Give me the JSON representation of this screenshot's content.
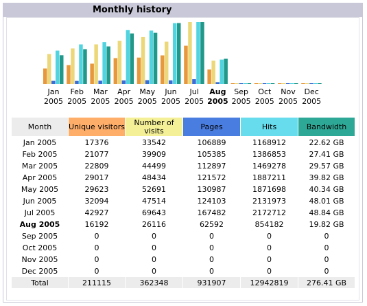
{
  "title": "Monthly history",
  "chart": {
    "months": [
      [
        "Jan",
        "2005"
      ],
      [
        "Feb",
        "2005"
      ],
      [
        "Mar",
        "2005"
      ],
      [
        "Apr",
        "2005"
      ],
      [
        "May",
        "2005"
      ],
      [
        "Jun",
        "2005"
      ],
      [
        "Jul",
        "2005"
      ],
      [
        "Aug",
        "2005"
      ],
      [
        "Sep",
        "2005"
      ],
      [
        "Oct",
        "2005"
      ],
      [
        "Nov",
        "2005"
      ],
      [
        "Dec",
        "2005"
      ]
    ],
    "series_colors": [
      "#e8983c",
      "#ecd878",
      "#3c6cd8",
      "#50d4e0",
      "#20988a"
    ]
  },
  "table": {
    "headers": [
      "Month",
      "Unique visitors",
      "Number of visits",
      "Pages",
      "Hits",
      "Bandwidth"
    ],
    "header_colors": [
      "#ececec",
      "#ffae6a",
      "#f4f098",
      "#4a7de0",
      "#66dcec",
      "#2ea896"
    ],
    "current_row": 7,
    "rows": [
      [
        "Jan 2005",
        17376,
        33542,
        106889,
        1168912,
        {
          "value": 22.62,
          "label": "22.62 GB"
        }
      ],
      [
        "Feb 2005",
        21077,
        39909,
        105385,
        1386853,
        {
          "value": 27.41,
          "label": "27.41 GB"
        }
      ],
      [
        "Mar 2005",
        22809,
        44499,
        112897,
        1469278,
        {
          "value": 29.57,
          "label": "29.57 GB"
        }
      ],
      [
        "Apr 2005",
        29017,
        48434,
        121572,
        1887211,
        {
          "value": 39.82,
          "label": "39.82 GB"
        }
      ],
      [
        "May 2005",
        29623,
        52691,
        130987,
        1871698,
        {
          "value": 40.34,
          "label": "40.34 GB"
        }
      ],
      [
        "Jun 2005",
        32094,
        47514,
        124103,
        2131973,
        {
          "value": 48.01,
          "label": "48.01 GB"
        }
      ],
      [
        "Jul 2005",
        42927,
        69643,
        167482,
        2172712,
        {
          "value": 48.84,
          "label": "48.84 GB"
        }
      ],
      [
        "Aug 2005",
        16192,
        26116,
        62592,
        854182,
        {
          "value": 19.82,
          "label": "19.82 GB"
        }
      ],
      [
        "Sep 2005",
        0,
        0,
        0,
        0,
        0
      ],
      [
        "Oct 2005",
        0,
        0,
        0,
        0,
        0
      ],
      [
        "Nov 2005",
        0,
        0,
        0,
        0,
        0
      ],
      [
        "Dec 2005",
        0,
        0,
        0,
        0,
        0
      ]
    ],
    "total": [
      "Total",
      211115,
      362348,
      931907,
      12942819,
      {
        "value": 276.41,
        "label": "276.41 GB"
      }
    ]
  }
}
